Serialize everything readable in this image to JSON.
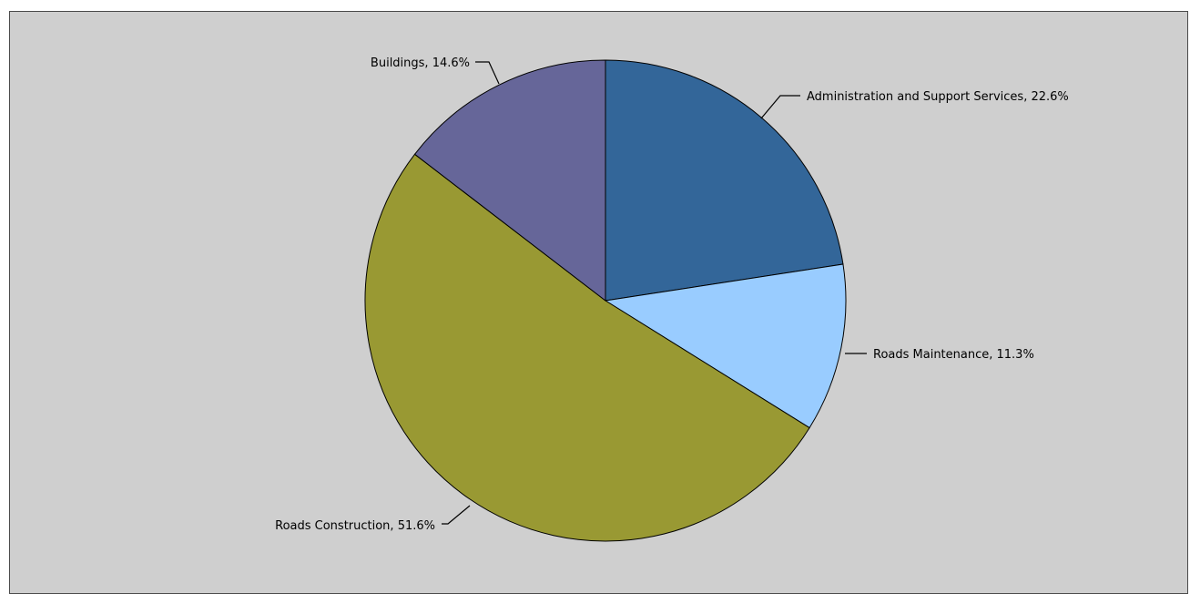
{
  "chart_data": {
    "type": "pie",
    "title": "",
    "slices": [
      {
        "label": "Administration and Support Services",
        "value": 22.6,
        "display": "Administration and Support Services, 22.6%",
        "color": "#336699"
      },
      {
        "label": "Roads Maintenance",
        "value": 11.3,
        "display": "Roads Maintenance, 11.3%",
        "color": "#99ccff"
      },
      {
        "label": "Roads Construction",
        "value": 51.6,
        "display": "Roads Construction, 51.6%",
        "color": "#999933"
      },
      {
        "label": "Buildings",
        "value": 14.6,
        "display": "Buildings, 14.6%",
        "color": "#666699"
      }
    ],
    "start_angle": "12 o'clock",
    "direction": "clockwise",
    "legend": "none",
    "background_color": "#cfcfcf"
  }
}
